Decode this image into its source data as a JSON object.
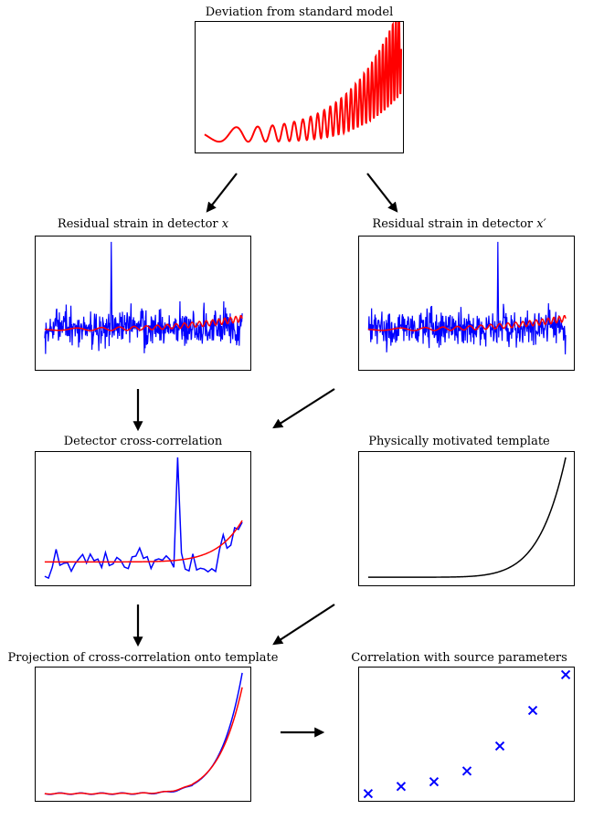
{
  "titles": {
    "deviation": "Deviation from standard model",
    "strain_x_prefix": "Residual strain in detector ",
    "strain_x_var": "x",
    "strain_xp_prefix": "Residual strain in detector ",
    "strain_xp_var": "x′",
    "cross_corr": "Detector cross-correlation",
    "template": "Physically motivated template",
    "projection": "Projection of cross-correlation onto template",
    "source_corr": "Correlation with source parameters"
  },
  "colors": {
    "signal": "#ff0000",
    "noise": "#0000ff",
    "template": "#000000",
    "arrow": "#000000"
  },
  "chart_data": [
    {
      "type": "line",
      "title": "Deviation from standard model",
      "series": [
        {
          "color": "#ff0000",
          "shape": "chirp with rising amplitude and frequency"
        }
      ]
    },
    {
      "type": "line",
      "title": "Residual strain in detector x",
      "series": [
        {
          "color": "#0000ff",
          "shape": "noise with a single spike"
        },
        {
          "color": "#ff0000",
          "shape": "chirp signal"
        }
      ]
    },
    {
      "type": "line",
      "title": "Residual strain in detector x′",
      "series": [
        {
          "color": "#0000ff",
          "shape": "noise with a single spike"
        },
        {
          "color": "#ff0000",
          "shape": "chirp signal"
        }
      ]
    },
    {
      "type": "line",
      "title": "Detector cross-correlation",
      "series": [
        {
          "color": "#0000ff",
          "shape": "noisy cross-correlation with spike"
        },
        {
          "color": "#ff0000",
          "shape": "smooth rising curve"
        }
      ]
    },
    {
      "type": "line",
      "title": "Physically motivated template",
      "series": [
        {
          "color": "#000000",
          "shape": "exponential rise"
        }
      ]
    },
    {
      "type": "line",
      "title": "Projection of cross-correlation onto template",
      "series": [
        {
          "color": "#0000ff",
          "shape": "exponential rise"
        },
        {
          "color": "#ff0000",
          "shape": "exponential rise"
        }
      ]
    },
    {
      "type": "scatter",
      "title": "Correlation with source parameters",
      "marker": "x",
      "color": "#0000ff",
      "x": [
        1,
        2,
        3,
        4,
        5,
        6,
        7
      ],
      "y": [
        0.0,
        0.06,
        0.1,
        0.19,
        0.4,
        0.7,
        1.0
      ]
    }
  ]
}
